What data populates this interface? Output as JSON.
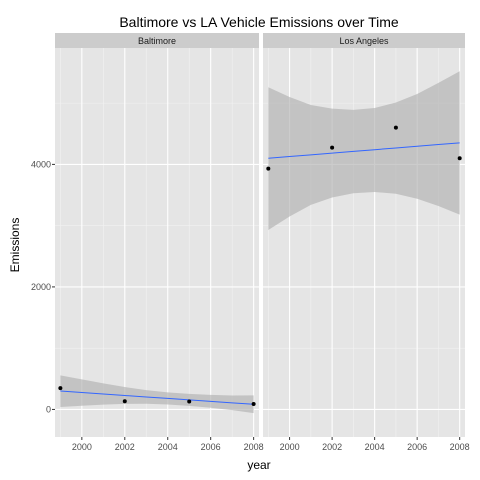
{
  "chart_data": {
    "type": "scatter",
    "title": "Baltimore vs LA Vehicle Emissions over Time",
    "xlabel": "year",
    "ylabel": "Emissions",
    "xlim": [
      1998.75,
      2008.25
    ],
    "ylim": [
      -450,
      5900
    ],
    "x_ticks": [
      2000,
      2002,
      2004,
      2006,
      2008
    ],
    "y_ticks": [
      0,
      2000,
      4000
    ],
    "grid": true,
    "trend": "linear fit with confidence band",
    "colors": {
      "panel_background": "#e5e5e5",
      "grid_major": "#ffffff",
      "grid_minor": "#f2f2f2",
      "strip_background": "#cccccc",
      "points": "#000000",
      "fit_line": "#3366ff",
      "confidence_band": "#b0b0b0"
    },
    "facets": [
      {
        "label": "Baltimore",
        "points": [
          {
            "x": 1999,
            "y": 347
          },
          {
            "x": 2002,
            "y": 134
          },
          {
            "x": 2005,
            "y": 130
          },
          {
            "x": 2008,
            "y": 88
          }
        ],
        "fit": {
          "x": [
            1999,
            2000,
            2001,
            2002,
            2003,
            2004,
            2005,
            2006,
            2007,
            2008
          ],
          "y": [
            300,
            276,
            252,
            228,
            204,
            180,
            156,
            132,
            108,
            85
          ],
          "lower": [
            40,
            61,
            78,
            90,
            92,
            81,
            59,
            27,
            -12,
            -60
          ],
          "upper": [
            555,
            491,
            426,
            366,
            316,
            279,
            253,
            237,
            228,
            230
          ]
        }
      },
      {
        "label": "Los Angeles",
        "points": [
          {
            "x": 1999,
            "y": 3931
          },
          {
            "x": 2002,
            "y": 4274
          },
          {
            "x": 2005,
            "y": 4601
          },
          {
            "x": 2008,
            "y": 4101
          }
        ],
        "fit": {
          "x": [
            1999,
            2000,
            2001,
            2002,
            2003,
            2004,
            2005,
            2006,
            2007,
            2008
          ],
          "y": [
            4100,
            4128,
            4156,
            4184,
            4212,
            4240,
            4268,
            4296,
            4324,
            4352
          ],
          "lower": [
            2930,
            3150,
            3340,
            3460,
            3530,
            3550,
            3520,
            3440,
            3320,
            3180
          ],
          "upper": [
            5260,
            5100,
            4970,
            4910,
            4890,
            4920,
            5010,
            5150,
            5330,
            5520
          ]
        }
      }
    ]
  }
}
